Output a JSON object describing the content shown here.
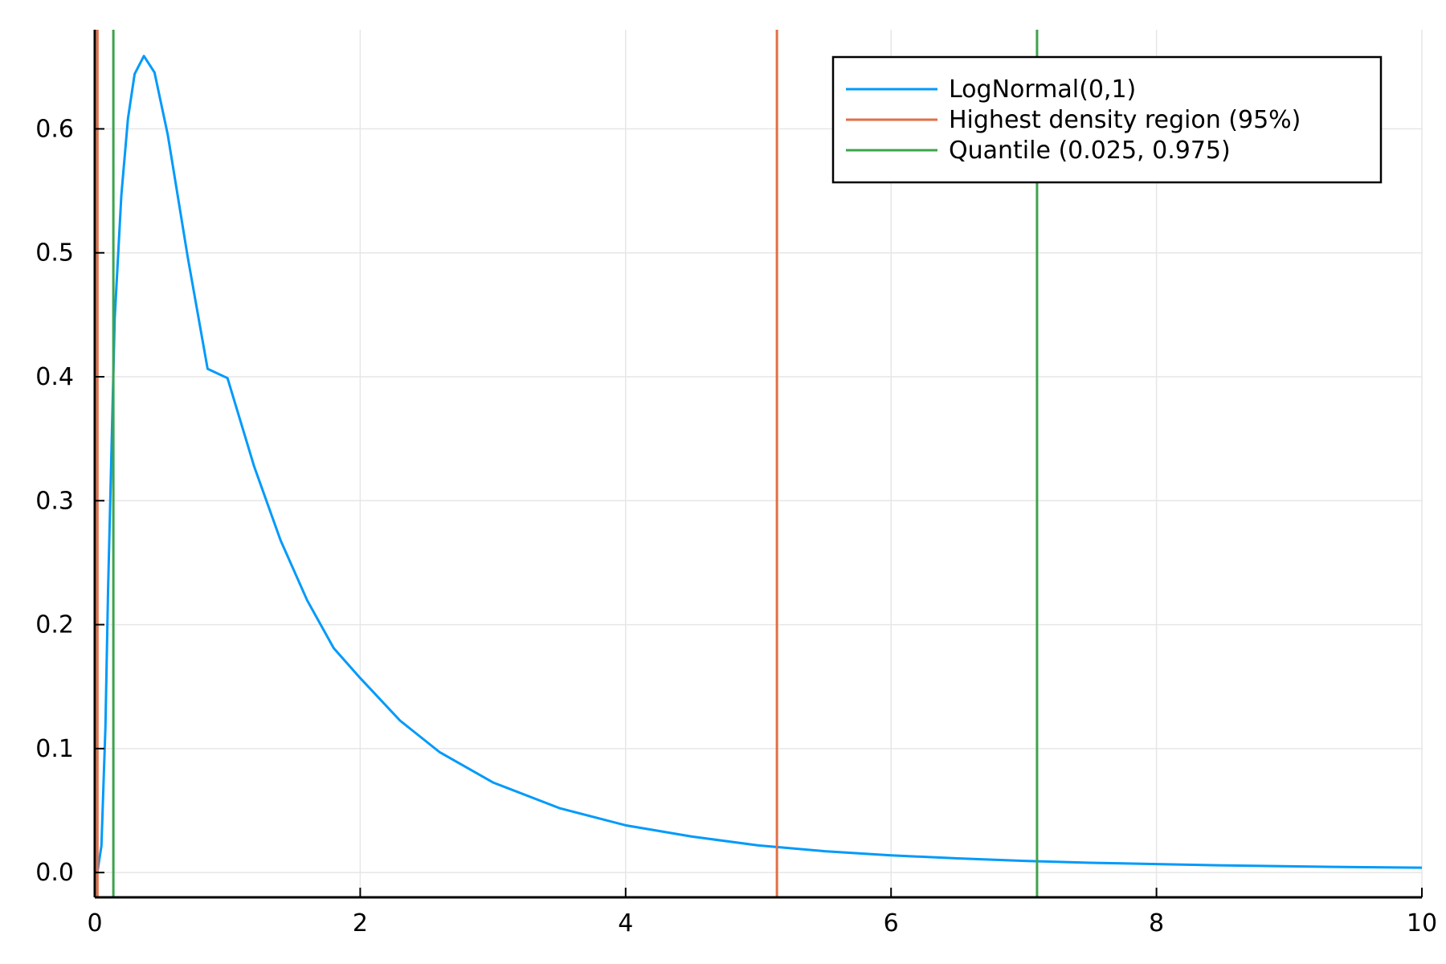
{
  "chart_data": {
    "type": "line",
    "title": "",
    "xlabel": "",
    "ylabel": "",
    "xlim": [
      0,
      10
    ],
    "ylim": [
      -0.02,
      0.68
    ],
    "xticks": [
      0,
      2,
      4,
      6,
      8,
      10
    ],
    "xtick_labels": [
      "0",
      "2",
      "4",
      "6",
      "8",
      "10"
    ],
    "yticks": [
      0.0,
      0.1,
      0.2,
      0.3,
      0.4,
      0.5,
      0.6
    ],
    "ytick_labels": [
      "0.0",
      "0.1",
      "0.2",
      "0.3",
      "0.4",
      "0.5",
      "0.6"
    ],
    "grid": true,
    "legend_position": "top-right",
    "series": [
      {
        "name": "LogNormal(0,1)",
        "kind": "curve",
        "color": "#009AFA",
        "x": [
          0.0,
          0.02,
          0.05,
          0.08,
          0.1,
          0.15,
          0.2,
          0.25,
          0.3,
          0.37,
          0.45,
          0.55,
          0.7,
          0.85,
          1.0,
          1.2,
          1.4,
          1.6,
          1.8,
          2.0,
          2.3,
          2.6,
          3.0,
          3.5,
          4.0,
          4.5,
          5.0,
          5.5,
          6.0,
          6.5,
          7.0,
          7.5,
          8.0,
          8.5,
          9.0,
          9.5,
          10.0
        ],
        "y": [
          0.0,
          0.0005,
          0.0216,
          0.117,
          0.2276,
          0.4468,
          0.5463,
          0.6084,
          0.6442,
          0.6588,
          0.6455,
          0.5952,
          0.4967,
          0.4064,
          0.3989,
          0.3279,
          0.268,
          0.2197,
          0.1811,
          0.1569,
          0.1226,
          0.097,
          0.0727,
          0.052,
          0.0381,
          0.029,
          0.0219,
          0.0172,
          0.0139,
          0.0114,
          0.0094,
          0.0079,
          0.0068,
          0.0058,
          0.005,
          0.0044,
          0.0039
        ]
      },
      {
        "name": "Highest density region (95%)",
        "kind": "vlines",
        "color": "#E26F46",
        "x": [
          0.02,
          5.14
        ]
      },
      {
        "name": "Quantile (0.025, 0.975)",
        "kind": "vlines",
        "color": "#3DA44D",
        "x": [
          0.14,
          7.1
        ]
      }
    ]
  }
}
